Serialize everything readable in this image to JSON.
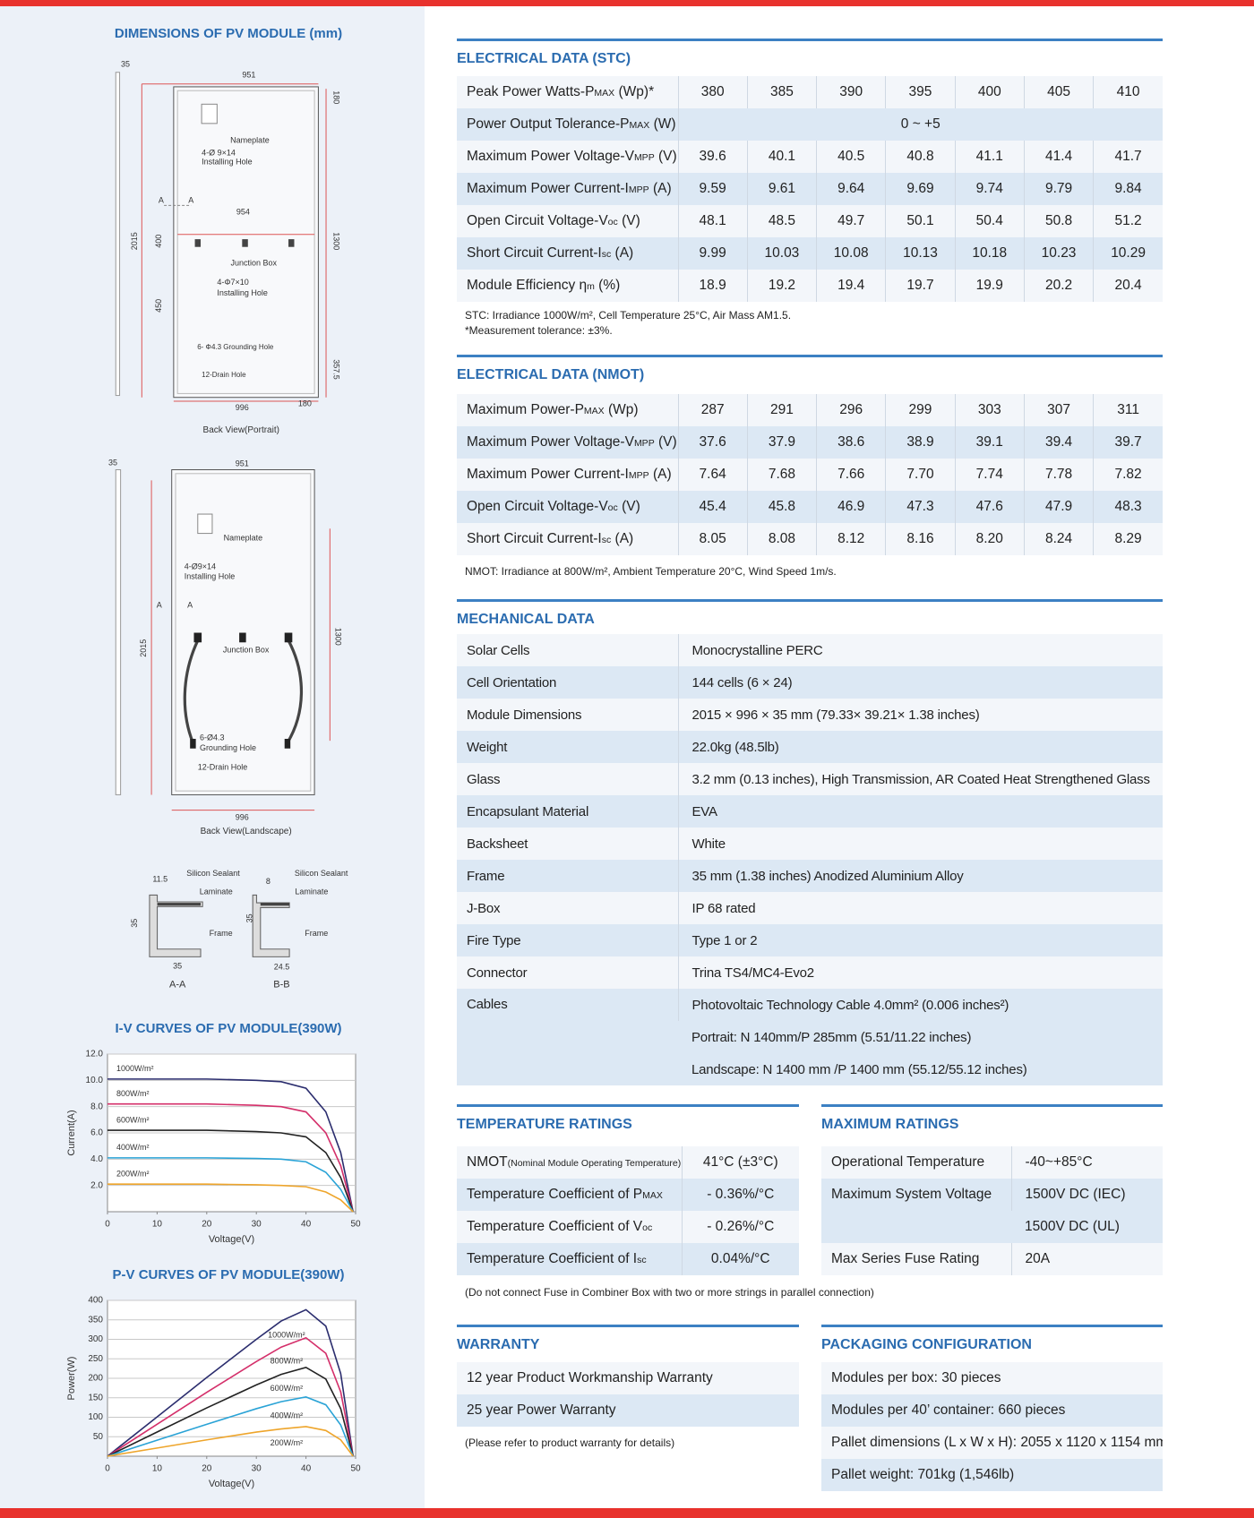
{
  "dimensions": {
    "title": "DIMENSIONS OF PV MODULE (mm)",
    "portrait": {
      "caption": "Back View(Portrait)",
      "labels": [
        "35",
        "951",
        "180",
        "Nameplate",
        "4-Ø 9×14",
        "Installing Hole",
        "A",
        "A",
        "954",
        "2015",
        "400",
        "1300",
        "Junction Box",
        "4-Φ7×10",
        "Installing Hole",
        "450",
        "6- Φ4.3 Grounding Hole",
        "357.5",
        "12-Drain Hole",
        "996",
        "180"
      ]
    },
    "landscape": {
      "caption": "Back View(Landscape)",
      "labels": [
        "35",
        "951",
        "Nameplate",
        "4-Ø9×14",
        "Installing Hole",
        "A",
        "A",
        "2015",
        "1300",
        "Junction Box",
        "6-Ø4.3",
        "Grounding Hole",
        "12-Drain Hole",
        "996"
      ]
    },
    "sections": {
      "labels": [
        "11.5",
        "Silicon Sealant",
        "Laminate",
        "35",
        "Frame",
        "35",
        "A-A",
        "8",
        "Silicon Sealant",
        "Laminate",
        "35",
        "Frame",
        "24.5",
        "B-B"
      ]
    }
  },
  "iv_chart": {
    "type": "line",
    "title": "I-V CURVES OF PV MODULE(390W)",
    "xlabel": "Voltage(V)",
    "ylabel": "Current(A)",
    "x": [
      0,
      10,
      20,
      30,
      35,
      40,
      44,
      47,
      49.5
    ],
    "xlim": [
      0,
      50
    ],
    "ylim": [
      0,
      12
    ],
    "xticks": [
      0,
      10,
      20,
      30,
      40,
      50
    ],
    "yticks": [
      {
        "value": 2,
        "label": "2.0"
      },
      {
        "value": 4,
        "label": "4.0"
      },
      {
        "value": 6,
        "label": "6.0"
      },
      {
        "value": 8,
        "label": "8.0"
      },
      {
        "value": 10,
        "label": "10.0"
      },
      {
        "value": 12,
        "label": "12.0"
      }
    ],
    "grid": true,
    "series": [
      {
        "name": "1000W/m²",
        "color": "#2b2d6e",
        "values": [
          10.1,
          10.1,
          10.1,
          10.0,
          9.9,
          9.4,
          7.6,
          4.5,
          0
        ]
      },
      {
        "name": "800W/m²",
        "color": "#d42f6a",
        "values": [
          8.2,
          8.2,
          8.2,
          8.1,
          8.0,
          7.6,
          6.0,
          3.5,
          0
        ]
      },
      {
        "name": "600W/m²",
        "color": "#222222",
        "values": [
          6.2,
          6.2,
          6.2,
          6.1,
          6.0,
          5.7,
          4.5,
          2.6,
          0
        ]
      },
      {
        "name": "400W/m²",
        "color": "#2aa3d6",
        "values": [
          4.1,
          4.1,
          4.1,
          4.05,
          4.0,
          3.8,
          3.0,
          1.7,
          0
        ]
      },
      {
        "name": "200W/m²",
        "color": "#eea52b",
        "values": [
          2.1,
          2.1,
          2.1,
          2.05,
          2.0,
          1.9,
          1.5,
          0.9,
          0
        ]
      }
    ]
  },
  "pv_chart": {
    "type": "line",
    "title": "P-V CURVES OF PV MODULE(390W)",
    "xlabel": "Voltage(V)",
    "ylabel": "Power(W)",
    "x": [
      0,
      10,
      20,
      30,
      35,
      40,
      44,
      47,
      49.5
    ],
    "xlim": [
      0,
      50
    ],
    "ylim": [
      0,
      400
    ],
    "xticks": [
      0,
      10,
      20,
      30,
      40,
      50
    ],
    "yticks": [
      50,
      100,
      150,
      200,
      250,
      300,
      350,
      400
    ],
    "grid": true,
    "series": [
      {
        "name": "1000W/m²",
        "color": "#2b2d6e",
        "values": [
          0,
          101,
          202,
          300,
          347,
          376,
          334,
          212,
          0
        ]
      },
      {
        "name": "800W/m²",
        "color": "#d42f6a",
        "values": [
          0,
          82,
          164,
          243,
          280,
          304,
          264,
          165,
          0
        ]
      },
      {
        "name": "600W/m²",
        "color": "#222222",
        "values": [
          0,
          62,
          124,
          183,
          210,
          228,
          198,
          122,
          0
        ]
      },
      {
        "name": "400W/m²",
        "color": "#2aa3d6",
        "values": [
          0,
          41,
          82,
          122,
          140,
          152,
          132,
          80,
          0
        ]
      },
      {
        "name": "200W/m²",
        "color": "#eea52b",
        "values": [
          0,
          21,
          42,
          62,
          70,
          76,
          66,
          42,
          0
        ]
      }
    ]
  },
  "stc": {
    "title": "ELECTRICAL DATA (STC)",
    "rows": [
      {
        "label": [
          "Peak Power Watts-P",
          "MAX",
          " (Wp)*"
        ],
        "values": [
          "380",
          "385",
          "390",
          "395",
          "400",
          "405",
          "410"
        ]
      },
      {
        "label": [
          "Power Output Tolerance-P",
          "MAX",
          " (W)"
        ],
        "values": [
          "0 ~ +5"
        ]
      },
      {
        "label": [
          "Maximum Power Voltage-V",
          "MPP",
          " (V)"
        ],
        "values": [
          "39.6",
          "40.1",
          "40.5",
          "40.8",
          "41.1",
          "41.4",
          "41.7"
        ]
      },
      {
        "label": [
          "Maximum Power Current-I",
          "MPP",
          " (A)"
        ],
        "values": [
          "9.59",
          "9.61",
          "9.64",
          "9.69",
          "9.74",
          "9.79",
          "9.84"
        ]
      },
      {
        "label": [
          "Open Circuit Voltage-V",
          "oc",
          " (V)"
        ],
        "values": [
          "48.1",
          "48.5",
          "49.7",
          "50.1",
          "50.4",
          "50.8",
          "51.2"
        ]
      },
      {
        "label": [
          "Short Circuit Current-I",
          "sc",
          " (A)"
        ],
        "values": [
          "9.99",
          "10.03",
          "10.08",
          "10.13",
          "10.18",
          "10.23",
          "10.29"
        ]
      },
      {
        "label": [
          "Module Efficiency η",
          "m",
          " (%)"
        ],
        "values": [
          "18.9",
          "19.2",
          "19.4",
          "19.7",
          "19.9",
          "20.2",
          "20.4"
        ]
      }
    ],
    "notes": [
      "STC: Irradiance 1000W/m², Cell Temperature 25°C, Air Mass AM1.5.",
      "*Measurement tolerance: ±3%."
    ]
  },
  "nmot": {
    "title": "ELECTRICAL DATA (NMOT)",
    "rows": [
      {
        "label": [
          "Maximum Power-P",
          "MAX",
          " (Wp)"
        ],
        "values": [
          "287",
          "291",
          "296",
          "299",
          "303",
          "307",
          "311"
        ]
      },
      {
        "label": [
          "Maximum Power Voltage-V",
          "MPP",
          " (V)"
        ],
        "values": [
          "37.6",
          "37.9",
          "38.6",
          "38.9",
          "39.1",
          "39.4",
          "39.7"
        ]
      },
      {
        "label": [
          "Maximum Power Current-I",
          "MPP",
          " (A)"
        ],
        "values": [
          "7.64",
          "7.68",
          "7.66",
          "7.70",
          "7.74",
          "7.78",
          "7.82"
        ]
      },
      {
        "label": [
          "Open Circuit Voltage-V",
          "oc",
          " (V)"
        ],
        "values": [
          "45.4",
          "45.8",
          "46.9",
          "47.3",
          "47.6",
          "47.9",
          "48.3"
        ]
      },
      {
        "label": [
          "Short Circuit Current-I",
          "sc",
          " (A)"
        ],
        "values": [
          "8.05",
          "8.08",
          "8.12",
          "8.16",
          "8.20",
          "8.24",
          "8.29"
        ]
      }
    ],
    "notes": [
      "NMOT: Irradiance at 800W/m², Ambient Temperature 20°C, Wind Speed 1m/s."
    ]
  },
  "mechanical": {
    "title": "MECHANICAL DATA",
    "rows": [
      {
        "label": "Solar Cells",
        "values": [
          "Monocrystalline PERC"
        ]
      },
      {
        "label": "Cell Orientation",
        "values": [
          "144 cells (6 × 24)"
        ]
      },
      {
        "label": "Module Dimensions",
        "values": [
          "2015 × 996 × 35 mm (79.33× 39.21× 1.38  inches)"
        ]
      },
      {
        "label": "Weight",
        "values": [
          "22.0kg (48.5lb)"
        ]
      },
      {
        "label": "Glass",
        "values": [
          "3.2 mm (0.13 inches), High Transmission, AR Coated Heat Strengthened Glass"
        ]
      },
      {
        "label": "Encapsulant Material",
        "values": [
          "EVA"
        ]
      },
      {
        "label": "Backsheet",
        "values": [
          "White"
        ]
      },
      {
        "label": "Frame",
        "values": [
          "35 mm (1.38 inches) Anodized Aluminium Alloy"
        ]
      },
      {
        "label": "J-Box",
        "values": [
          "IP 68 rated"
        ]
      },
      {
        "label": "Fire Type",
        "values": [
          "Type 1 or 2"
        ]
      },
      {
        "label": "Connector",
        "values": [
          "Trina TS4/MC4-Evo2"
        ]
      },
      {
        "label": "Cables",
        "values": [
          "Photovoltaic Technology Cable 4.0mm² (0.006 inches²)",
          "Portrait: N 140mm/P 285mm (5.51/11.22 inches)",
          "Landscape: N 1400 mm /P 1400 mm (55.12/55.12 inches)"
        ]
      }
    ]
  },
  "temperature": {
    "title": "TEMPERATURE RATINGS",
    "rows": [
      {
        "label": [
          "NMOT",
          "(Nominal Module Operating Temperature)"
        ],
        "values": [
          "41°C (±3°C)"
        ]
      },
      {
        "label": [
          "Temperature Coefficient of P",
          "MAX"
        ],
        "values": [
          "- 0.36%/°C"
        ]
      },
      {
        "label": [
          "Temperature Coefficient of V",
          "oc"
        ],
        "values": [
          "- 0.26%/°C"
        ]
      },
      {
        "label": [
          "Temperature Coefficient of I",
          "sc"
        ],
        "values": [
          "0.04%/°C"
        ]
      }
    ]
  },
  "maximum": {
    "title": "MAXIMUM RATINGS",
    "rows": [
      {
        "label": "Operational Temperature",
        "values": [
          "-40~+85°C"
        ]
      },
      {
        "label": "Maximum System Voltage",
        "values": [
          "1500V DC (IEC)",
          "1500V DC (UL)"
        ]
      },
      {
        "label": "Max Series Fuse Rating",
        "values": [
          "20A"
        ]
      }
    ],
    "notes": [
      "(Do not connect Fuse in Combiner Box with two or more strings in  parallel connection)"
    ]
  },
  "warranty": {
    "title": "WARRANTY",
    "items": [
      "12 year Product Workmanship Warranty",
      "25 year Power Warranty"
    ],
    "notes": [
      "(Please refer to product warranty for details)"
    ]
  },
  "packaging": {
    "title": "PACKAGING CONFIGURATION",
    "items": [
      "Modules per box: 30 pieces",
      "Modules per 40’ container: 660 pieces",
      "Pallet dimensions (L x W x H): 2055 x 1120 x 1154 mm",
      "Pallet weight: 701kg (1,546lb)"
    ]
  }
}
